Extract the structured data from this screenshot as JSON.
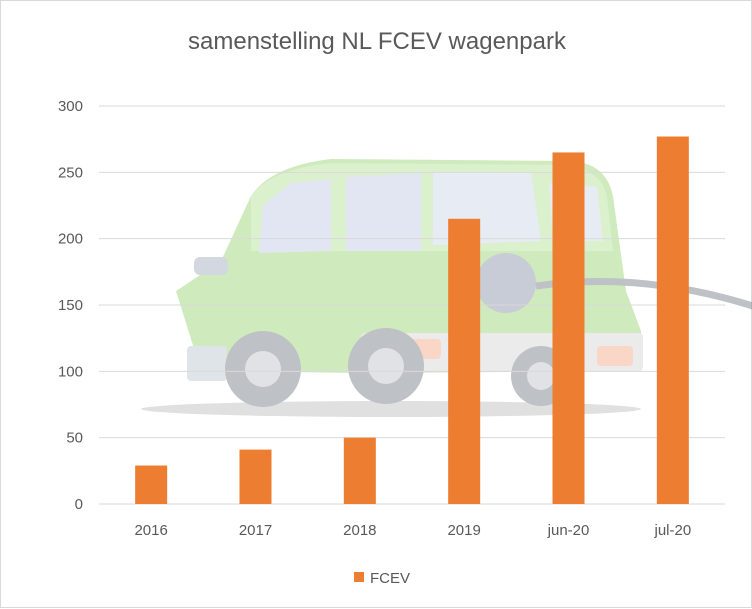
{
  "chart_data": {
    "type": "bar",
    "title": "samenstelling NL FCEV wagenpark",
    "categories": [
      "2016",
      "2017",
      "2018",
      "2019",
      "jun-20",
      "jul-20"
    ],
    "series": [
      {
        "name": "FCEV",
        "values": [
          29,
          41,
          50,
          215,
          265,
          277
        ],
        "color": "#ed7d31"
      }
    ],
    "ylim": [
      0,
      300
    ],
    "yticks": [
      0,
      50,
      100,
      150,
      200,
      250,
      300
    ],
    "grid": true,
    "legend_position": "bottom",
    "gridline_color": "#d9d9d9",
    "background_image": "faded-green-van-illustration"
  }
}
